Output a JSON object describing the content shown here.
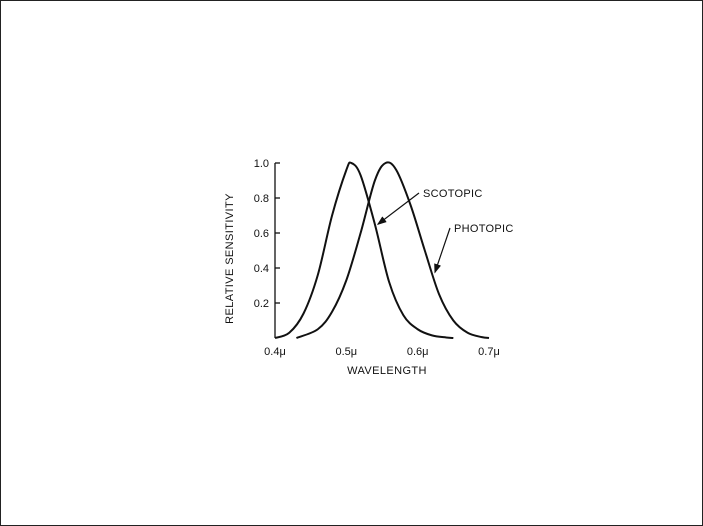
{
  "chart_data": {
    "type": "line",
    "title": "",
    "xlabel": "WAVELENGTH",
    "ylabel": "RELATIVE SENSITIVITY",
    "xlim": [
      0.4,
      0.7
    ],
    "ylim": [
      0,
      1.0
    ],
    "x_ticks": [
      {
        "value": 0.4,
        "label": "0.4μ"
      },
      {
        "value": 0.5,
        "label": "0.5μ"
      },
      {
        "value": 0.6,
        "label": "0.6μ"
      },
      {
        "value": 0.7,
        "label": "0.7μ"
      }
    ],
    "y_ticks": [
      {
        "value": 0.2,
        "label": "0.2"
      },
      {
        "value": 0.4,
        "label": "0.4"
      },
      {
        "value": 0.6,
        "label": "0.6"
      },
      {
        "value": 0.8,
        "label": "0.8"
      },
      {
        "value": 1.0,
        "label": "1.0"
      }
    ],
    "grid": false,
    "series": [
      {
        "name": "SCOTOPIC",
        "x": [
          0.4,
          0.42,
          0.44,
          0.46,
          0.48,
          0.5,
          0.507,
          0.52,
          0.54,
          0.56,
          0.58,
          0.6,
          0.62,
          0.64,
          0.65
        ],
        "y": [
          0.0,
          0.03,
          0.14,
          0.36,
          0.7,
          0.96,
          1.0,
          0.93,
          0.65,
          0.32,
          0.13,
          0.05,
          0.015,
          0.003,
          0.0
        ]
      },
      {
        "name": "PHOTOPIC",
        "x": [
          0.43,
          0.46,
          0.48,
          0.5,
          0.52,
          0.54,
          0.555,
          0.57,
          0.59,
          0.61,
          0.63,
          0.65,
          0.67,
          0.69,
          0.7
        ],
        "y": [
          0.0,
          0.05,
          0.15,
          0.33,
          0.6,
          0.9,
          1.0,
          0.96,
          0.76,
          0.5,
          0.25,
          0.1,
          0.03,
          0.005,
          0.0
        ]
      }
    ],
    "annotations": [
      {
        "text": "SCOTOPIC",
        "target_series": "SCOTOPIC",
        "at_x": 0.54
      },
      {
        "text": "PHOTOPIC",
        "target_series": "PHOTOPIC",
        "at_x": 0.62
      }
    ]
  }
}
